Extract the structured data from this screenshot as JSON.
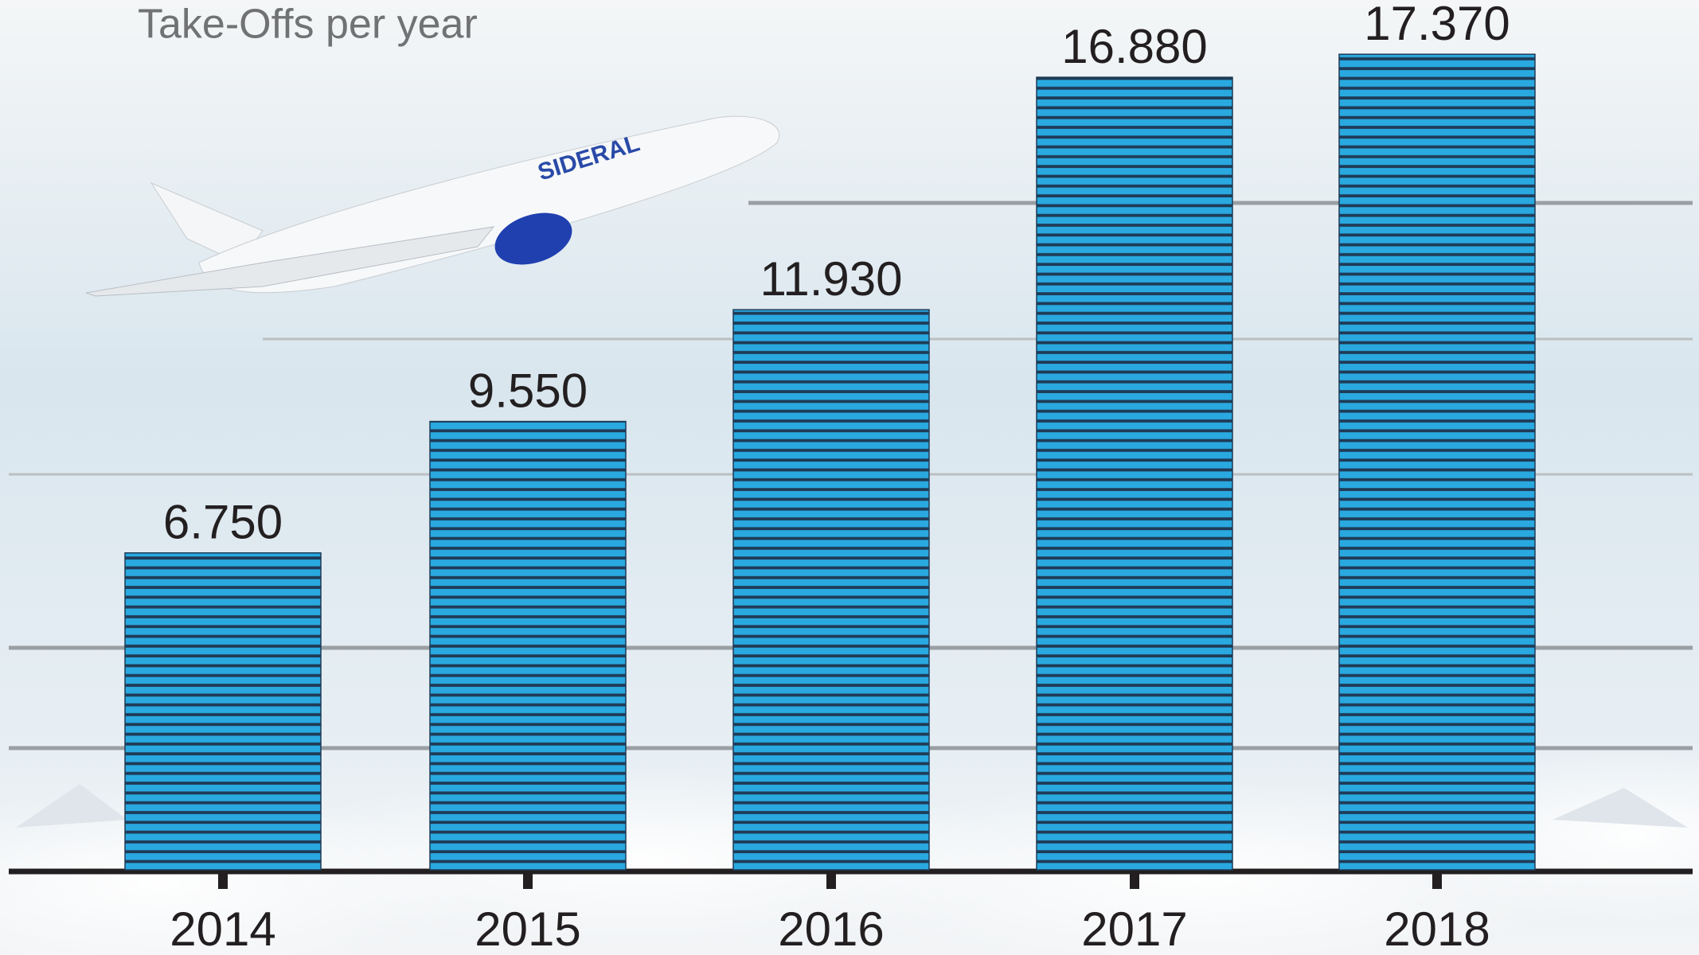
{
  "chart_data": {
    "type": "bar",
    "title": "Take-Offs per year",
    "categories": [
      "2014",
      "2015",
      "2016",
      "2017",
      "2018"
    ],
    "values": [
      6750,
      9550,
      11930,
      16880,
      17370
    ],
    "value_labels": [
      "6.750",
      "9.550",
      "11.930",
      "16.880",
      "17.370"
    ],
    "color": "#29a9e0",
    "ylim": [
      0,
      18000
    ]
  }
}
